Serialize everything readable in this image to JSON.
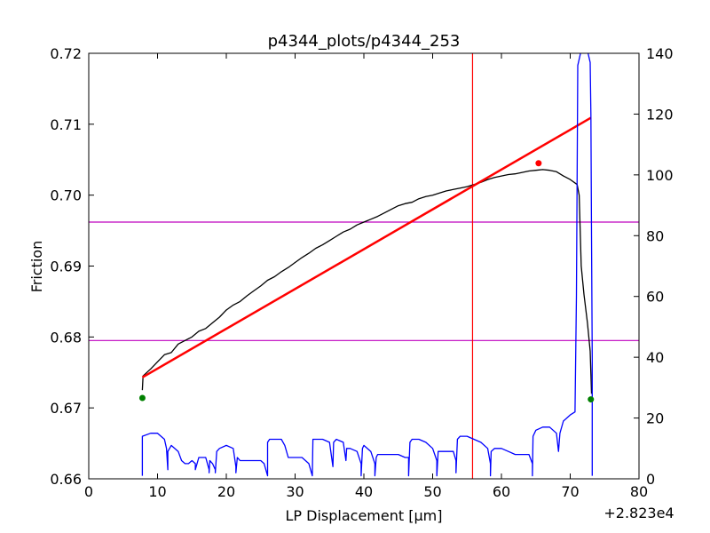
{
  "chart_data": {
    "type": "line",
    "title": "p4344_plots/p4344_253",
    "xlabel": "LP Displacement [μm]",
    "ylabel": "Friction",
    "x_offset_label": "+2.823e4",
    "xlim": [
      0,
      80
    ],
    "ylim": [
      0.66,
      0.72
    ],
    "y2lim": [
      0,
      140
    ],
    "x_ticks": [
      "0",
      "10",
      "20",
      "30",
      "40",
      "50",
      "60",
      "70",
      "80"
    ],
    "y_ticks": [
      "0.66",
      "0.67",
      "0.68",
      "0.69",
      "0.70",
      "0.71",
      "0.72"
    ],
    "y2_ticks": [
      "0",
      "20",
      "40",
      "60",
      "80",
      "100",
      "120",
      "140"
    ],
    "grid": false,
    "series": [
      {
        "color": "#000000",
        "axis": "left",
        "points": [
          [
            7.8,
            0.6725
          ],
          [
            7.9,
            0.6745
          ],
          [
            9,
            0.6755
          ],
          [
            10,
            0.6765
          ],
          [
            11,
            0.6775
          ],
          [
            12,
            0.6778
          ],
          [
            13,
            0.679
          ],
          [
            14,
            0.6795
          ],
          [
            15,
            0.68
          ],
          [
            16,
            0.6808
          ],
          [
            17,
            0.6812
          ],
          [
            18,
            0.682
          ],
          [
            19,
            0.6828
          ],
          [
            20,
            0.6838
          ],
          [
            21,
            0.6845
          ],
          [
            22,
            0.685
          ],
          [
            23,
            0.6858
          ],
          [
            24,
            0.6865
          ],
          [
            25,
            0.6872
          ],
          [
            26,
            0.688
          ],
          [
            27,
            0.6885
          ],
          [
            28,
            0.6892
          ],
          [
            29,
            0.6898
          ],
          [
            30,
            0.6905
          ],
          [
            31,
            0.6912
          ],
          [
            32,
            0.6918
          ],
          [
            33,
            0.6925
          ],
          [
            34,
            0.693
          ],
          [
            35,
            0.6936
          ],
          [
            36,
            0.6942
          ],
          [
            37,
            0.6948
          ],
          [
            38,
            0.6952
          ],
          [
            39,
            0.6958
          ],
          [
            40,
            0.6962
          ],
          [
            41,
            0.6966
          ],
          [
            42,
            0.697
          ],
          [
            43,
            0.6975
          ],
          [
            44,
            0.698
          ],
          [
            45,
            0.6985
          ],
          [
            46,
            0.6988
          ],
          [
            47,
            0.699
          ],
          [
            48,
            0.6995
          ],
          [
            49,
            0.6998
          ],
          [
            50,
            0.7
          ],
          [
            51,
            0.7003
          ],
          [
            52,
            0.7006
          ],
          [
            53,
            0.7008
          ],
          [
            54,
            0.701
          ],
          [
            55,
            0.7012
          ],
          [
            56,
            0.7015
          ],
          [
            57,
            0.7018
          ],
          [
            58,
            0.7022
          ],
          [
            59,
            0.7025
          ],
          [
            60,
            0.7027
          ],
          [
            61,
            0.7029
          ],
          [
            62,
            0.703
          ],
          [
            63,
            0.7032
          ],
          [
            64,
            0.7034
          ],
          [
            65,
            0.7035
          ],
          [
            66,
            0.7036
          ],
          [
            67,
            0.7035
          ],
          [
            68,
            0.7033
          ],
          [
            69,
            0.7027
          ],
          [
            70,
            0.7022
          ],
          [
            71,
            0.7015
          ],
          [
            71.3,
            0.7
          ],
          [
            71.6,
            0.69
          ],
          [
            72,
            0.686
          ],
          [
            72.5,
            0.682
          ],
          [
            72.9,
            0.678
          ],
          [
            73.1,
            0.672
          ]
        ]
      },
      {
        "color": "#ff0000",
        "axis": "left",
        "points": [
          [
            7.8,
            0.6743
          ],
          [
            73.0,
            0.7109
          ]
        ]
      },
      {
        "color": "#0000ff",
        "axis": "right",
        "points": [
          [
            7.8,
            1
          ],
          [
            7.8,
            14
          ],
          [
            9,
            15
          ],
          [
            10,
            15
          ],
          [
            11,
            13
          ],
          [
            11.3,
            10
          ],
          [
            11.5,
            3
          ],
          [
            11.5,
            9
          ],
          [
            12,
            11
          ],
          [
            13,
            9
          ],
          [
            13.5,
            6
          ],
          [
            14,
            5
          ],
          [
            14.5,
            5
          ],
          [
            15,
            6
          ],
          [
            15.5,
            5
          ],
          [
            15.5,
            3
          ],
          [
            16,
            7
          ],
          [
            17,
            7
          ],
          [
            17.5,
            3
          ],
          [
            17.5,
            2
          ],
          [
            17.6,
            6
          ],
          [
            18,
            5
          ],
          [
            18.4,
            3
          ],
          [
            18.4,
            2
          ],
          [
            18.6,
            9
          ],
          [
            19,
            10
          ],
          [
            20,
            11
          ],
          [
            21,
            10
          ],
          [
            21.4,
            4
          ],
          [
            21.4,
            2
          ],
          [
            21.6,
            7
          ],
          [
            22,
            6
          ],
          [
            23,
            6
          ],
          [
            24,
            6
          ],
          [
            25,
            6
          ],
          [
            25.5,
            5
          ],
          [
            26,
            1
          ],
          [
            26,
            12
          ],
          [
            26.3,
            13
          ],
          [
            27,
            13
          ],
          [
            28,
            13
          ],
          [
            28.5,
            11
          ],
          [
            29,
            7
          ],
          [
            30,
            7
          ],
          [
            31,
            7
          ],
          [
            32,
            5
          ],
          [
            32.5,
            1
          ],
          [
            32.6,
            13
          ],
          [
            33,
            13
          ],
          [
            34,
            13
          ],
          [
            35,
            12
          ],
          [
            35.5,
            4
          ],
          [
            35.6,
            12
          ],
          [
            36,
            13
          ],
          [
            37,
            12
          ],
          [
            37.4,
            6
          ],
          [
            37.5,
            10
          ],
          [
            38,
            10
          ],
          [
            39,
            9
          ],
          [
            39.6,
            5
          ],
          [
            39.6,
            1
          ],
          [
            39.8,
            10
          ],
          [
            40,
            11
          ],
          [
            41,
            9
          ],
          [
            41.6,
            5
          ],
          [
            41.6,
            1
          ],
          [
            41.8,
            7
          ],
          [
            42,
            8
          ],
          [
            44,
            8
          ],
          [
            45,
            8
          ],
          [
            46,
            7
          ],
          [
            46.5,
            7
          ],
          [
            46.5,
            1
          ],
          [
            46.7,
            12
          ],
          [
            47,
            13
          ],
          [
            48,
            13
          ],
          [
            49,
            12
          ],
          [
            50,
            10
          ],
          [
            50.6,
            6
          ],
          [
            50.6,
            1
          ],
          [
            50.8,
            9
          ],
          [
            51,
            9
          ],
          [
            53,
            9
          ],
          [
            53.4,
            6
          ],
          [
            53.4,
            2
          ],
          [
            53.6,
            13
          ],
          [
            54,
            14
          ],
          [
            55,
            14
          ],
          [
            56,
            13
          ],
          [
            57,
            12
          ],
          [
            58,
            10
          ],
          [
            58.4,
            5
          ],
          [
            58.4,
            1
          ],
          [
            58.5,
            9
          ],
          [
            59,
            10
          ],
          [
            60,
            10
          ],
          [
            61,
            9
          ],
          [
            62,
            8
          ],
          [
            63,
            8
          ],
          [
            64,
            8
          ],
          [
            64.5,
            5
          ],
          [
            64.5,
            1
          ],
          [
            64.6,
            14
          ],
          [
            65,
            16
          ],
          [
            66,
            17
          ],
          [
            67,
            17
          ],
          [
            68,
            15
          ],
          [
            68.3,
            9
          ],
          [
            68.5,
            15
          ],
          [
            69,
            19
          ],
          [
            70,
            21
          ],
          [
            70.7,
            22
          ],
          [
            70.9,
            60
          ],
          [
            71,
            100
          ],
          [
            71.1,
            136
          ],
          [
            71.5,
            140
          ],
          [
            72,
            141
          ],
          [
            72.6,
            140
          ],
          [
            72.9,
            137
          ],
          [
            73.0,
            120
          ],
          [
            73.1,
            80
          ],
          [
            73.2,
            40
          ],
          [
            73.2,
            1
          ]
        ]
      }
    ],
    "horizontal_lines": [
      {
        "color": "#bf00bf",
        "y": 0.6962
      },
      {
        "color": "#bf00bf",
        "y": 0.6795
      }
    ],
    "vertical_lines": [
      {
        "color": "#ff0000",
        "x": 55.8
      }
    ],
    "markers": [
      {
        "color": "#008000",
        "x": 7.8,
        "y": 0.6714
      },
      {
        "color": "#008000",
        "x": 73.0,
        "y": 0.6712
      },
      {
        "color": "#ff0000",
        "x": 65.4,
        "y": 0.7045
      }
    ]
  }
}
